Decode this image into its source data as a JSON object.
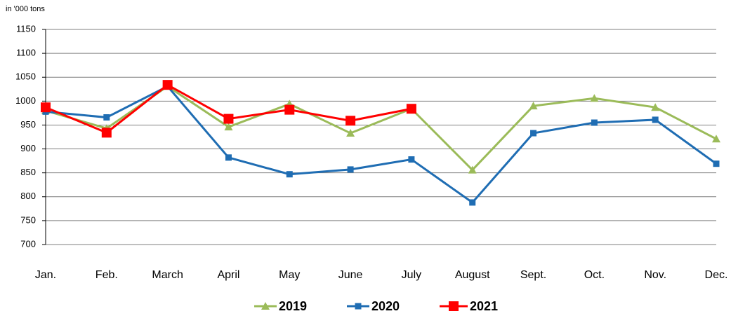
{
  "chart_data": {
    "type": "line",
    "unit_label": "in '000 tons",
    "categories": [
      "Jan.",
      "Feb.",
      "March",
      "April",
      "May",
      "June",
      "July",
      "August",
      "Sept.",
      "Oct.",
      "Nov.",
      "Dec."
    ],
    "series": [
      {
        "name": "2019",
        "color": "#9bbb59",
        "marker": "triangle",
        "values": [
          980,
          943,
          1031,
          946,
          994,
          933,
          984,
          856,
          990,
          1006,
          987,
          921
        ]
      },
      {
        "name": "2020",
        "color": "#1f6db3",
        "marker": "square",
        "values": [
          978,
          966,
          1031,
          882,
          847,
          857,
          878,
          788,
          933,
          955,
          961,
          869
        ]
      },
      {
        "name": "2021",
        "color": "#ff0000",
        "marker": "big-square",
        "values": [
          987,
          934,
          1034,
          963,
          982,
          959,
          984,
          null,
          null,
          null,
          null,
          null
        ]
      }
    ],
    "ylim": [
      700,
      1150
    ],
    "yticks": [
      700,
      750,
      800,
      850,
      900,
      950,
      1000,
      1050,
      1100,
      1150
    ],
    "grid": true,
    "legend": "bottom"
  }
}
